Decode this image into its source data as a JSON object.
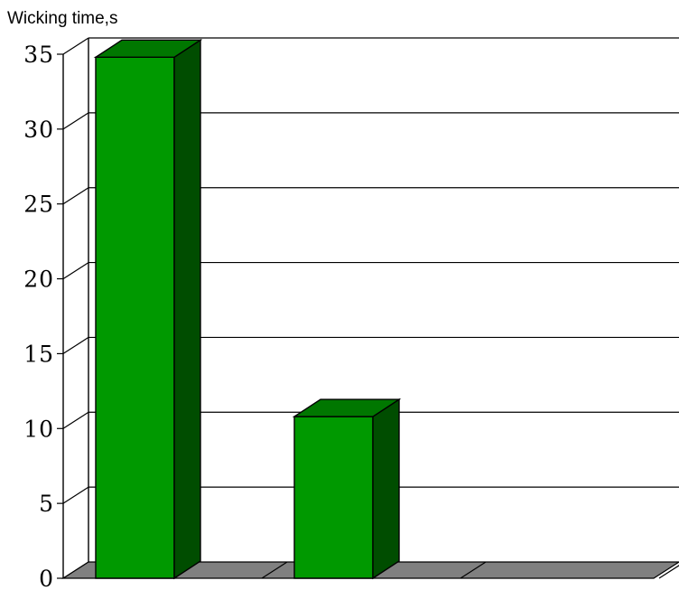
{
  "chart_data": {
    "type": "bar",
    "title": "",
    "ylabel": "Wicking time,s",
    "xlabel": "",
    "categories": [
      "",
      "",
      ""
    ],
    "values": [
      34.8,
      10.8,
      0
    ],
    "ylim": [
      0,
      35
    ],
    "yticks": [
      "0",
      "5",
      "10",
      "15",
      "20",
      "25",
      "30",
      "35"
    ],
    "grid": true,
    "style": "3d",
    "colors": {
      "bar_front": "#009900",
      "bar_top": "#007700",
      "bar_side": "#004d00",
      "floor": "#808080"
    }
  }
}
